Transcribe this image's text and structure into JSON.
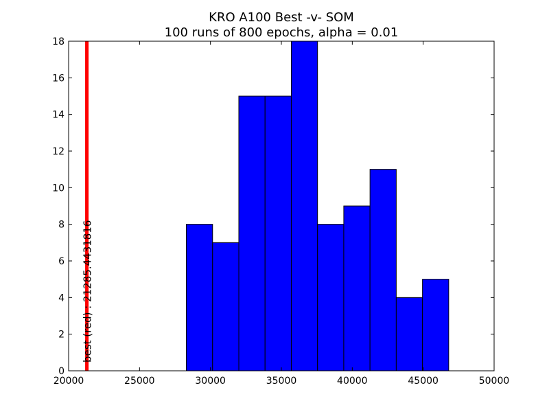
{
  "chart_data": {
    "type": "bar",
    "title": "KRO A100 Best -v- SOM",
    "subtitle": "100 runs of 800 epochs, alpha = 0.01",
    "xlabel": "",
    "ylabel": "",
    "xlim": [
      20000,
      50000
    ],
    "ylim": [
      0,
      18
    ],
    "grid": false,
    "legend": "none",
    "bar_color": "#0000ff",
    "bins": [
      {
        "x0": 28300,
        "x1": 30150,
        "value": 8
      },
      {
        "x0": 30150,
        "x1": 32000,
        "value": 7
      },
      {
        "x0": 32000,
        "x1": 33850,
        "value": 15
      },
      {
        "x0": 33850,
        "x1": 35700,
        "value": 15
      },
      {
        "x0": 35700,
        "x1": 37550,
        "value": 18
      },
      {
        "x0": 37550,
        "x1": 39400,
        "value": 8
      },
      {
        "x0": 39400,
        "x1": 41250,
        "value": 9
      },
      {
        "x0": 41250,
        "x1": 43100,
        "value": 11
      },
      {
        "x0": 43100,
        "x1": 44950,
        "value": 4
      },
      {
        "x0": 44950,
        "x1": 46800,
        "value": 5
      }
    ],
    "x_ticks": [
      "20000",
      "25000",
      "30000",
      "35000",
      "40000",
      "45000",
      "50000"
    ],
    "y_ticks": [
      "0",
      "2",
      "4",
      "6",
      "8",
      "10",
      "12",
      "14",
      "16",
      "18"
    ],
    "best_line": {
      "x": 21285.4431816,
      "color": "#ff0000",
      "label": "best (red) : 21285.4431816"
    }
  }
}
